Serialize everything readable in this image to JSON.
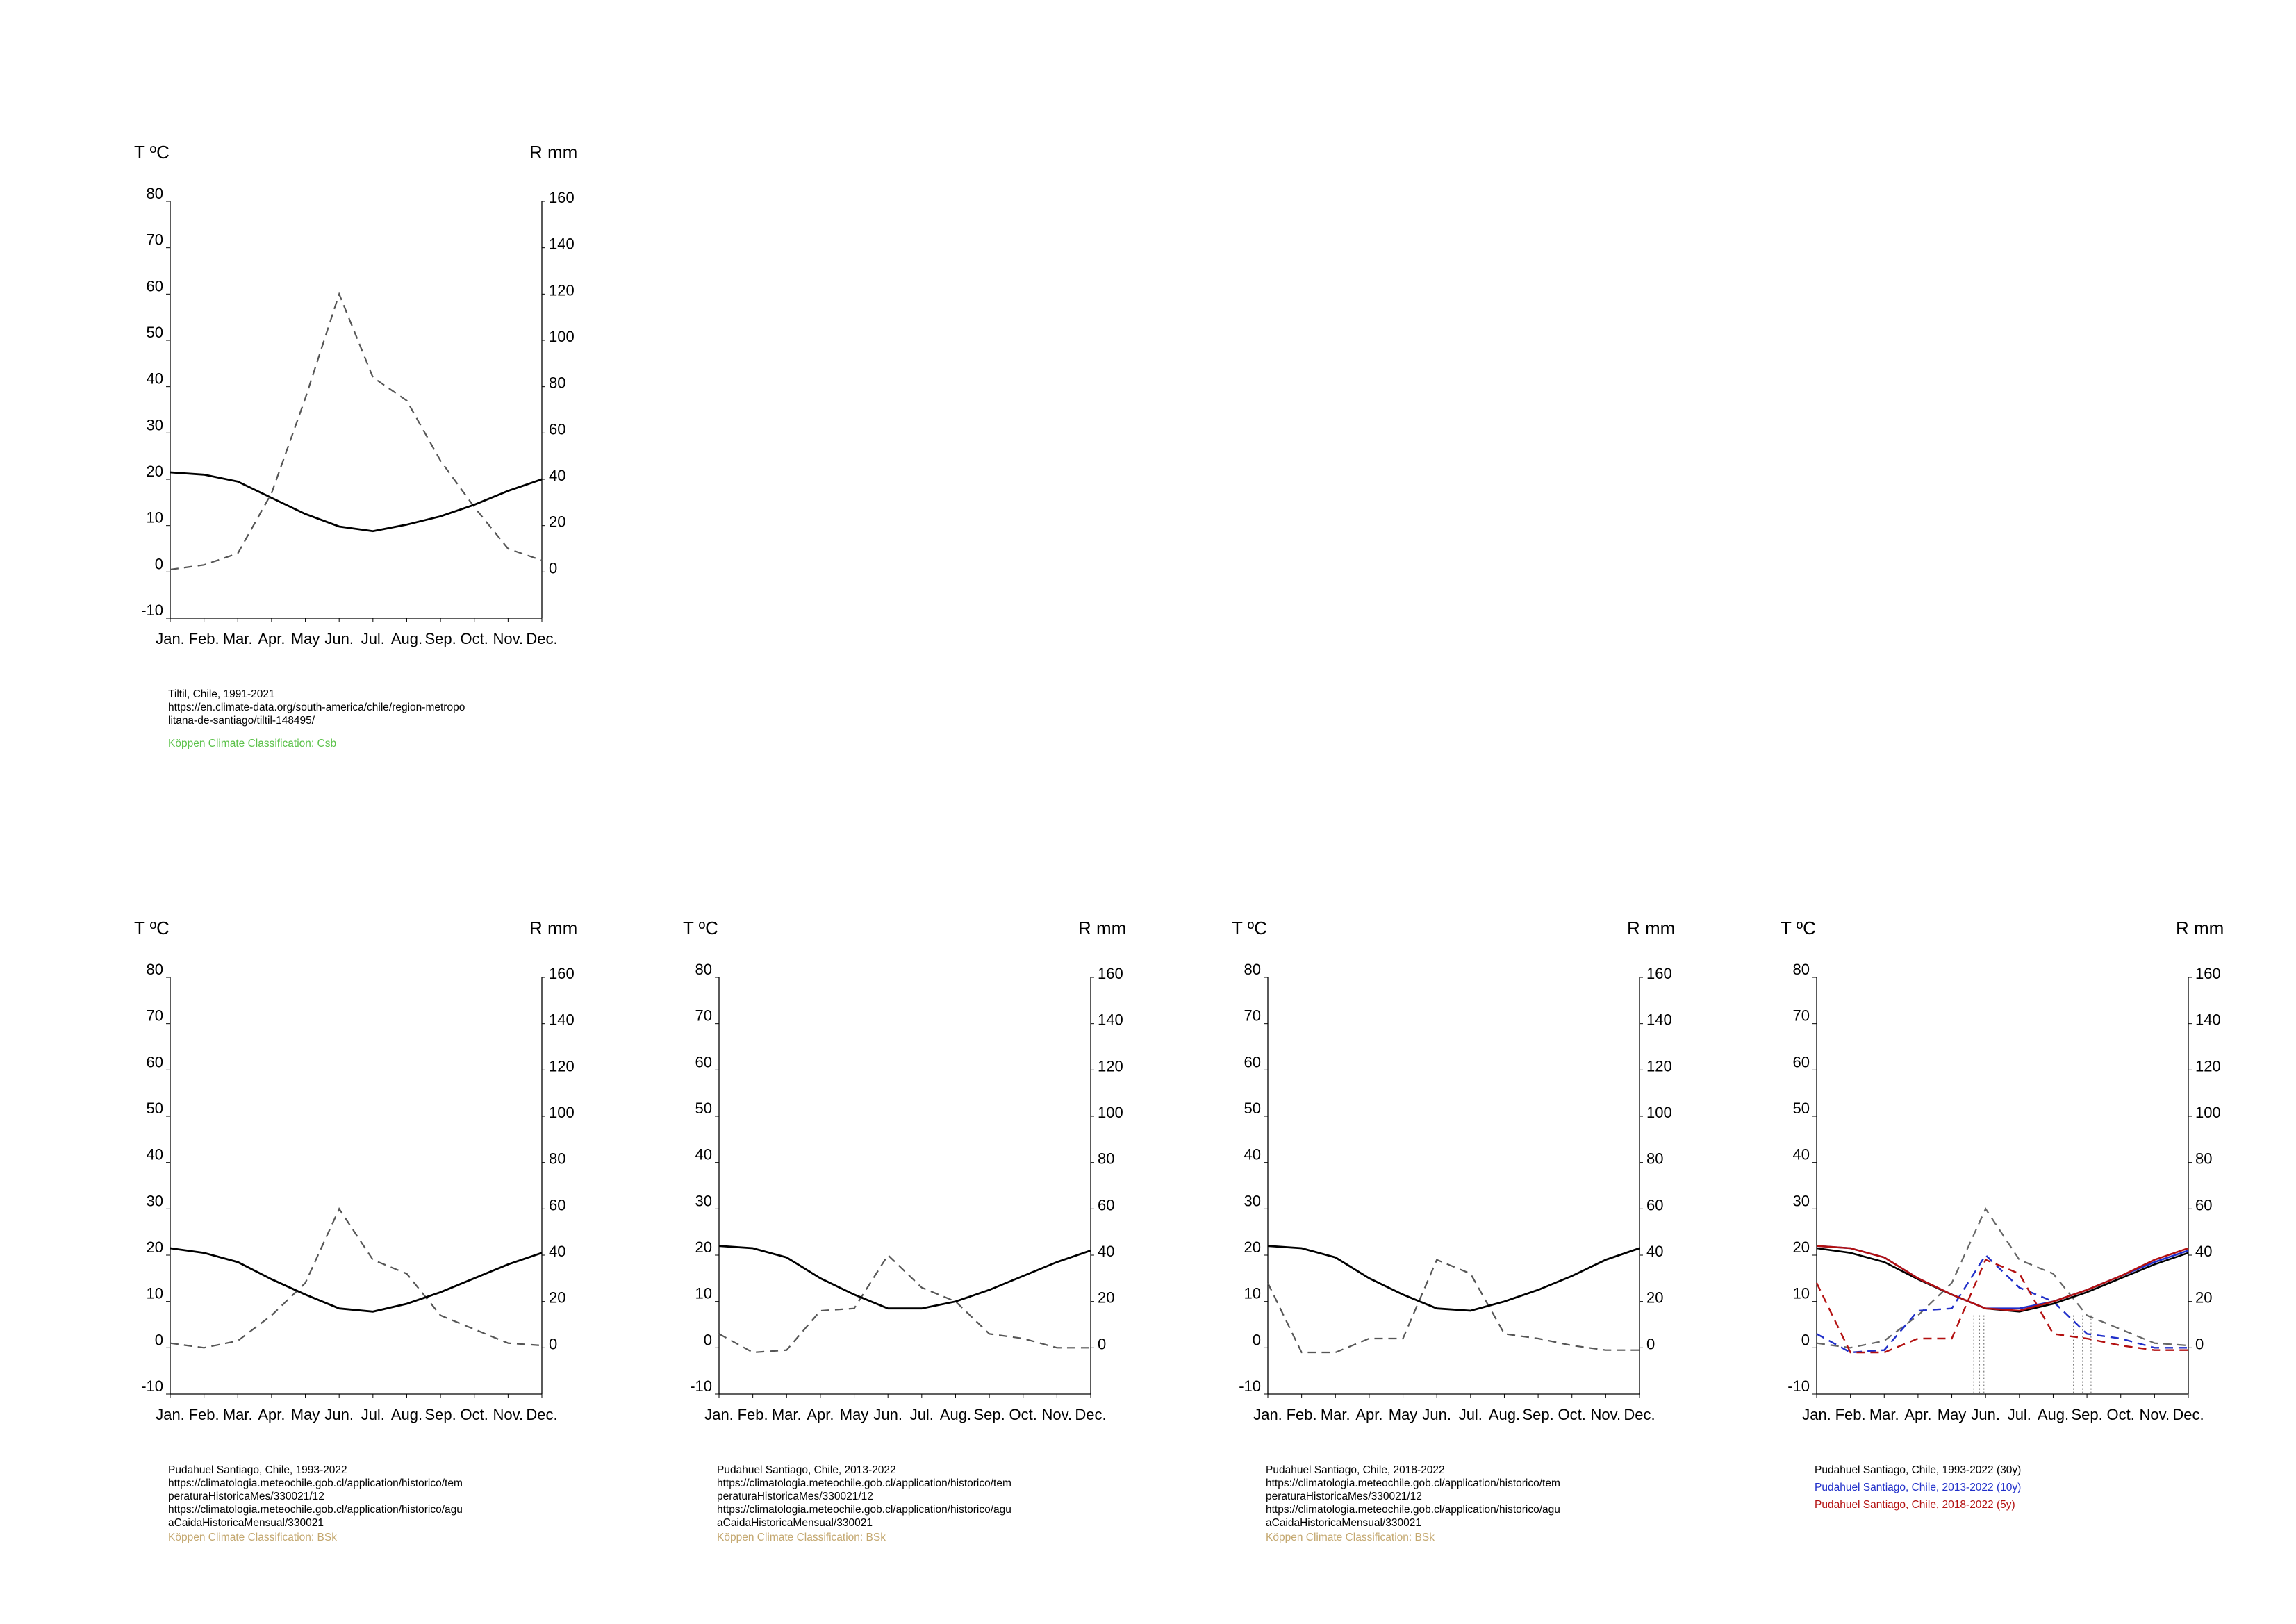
{
  "colors": {
    "temp_line": "#000000",
    "rain_line": "#555555",
    "blue": "#1f2ec9",
    "red": "#b31010",
    "koppen_csb": "#5cc24a",
    "koppen_bsk": "#c4a870"
  },
  "chart_data": [
    {
      "type": "line",
      "x": [
        "Jan.",
        "Feb.",
        "Mar.",
        "Apr.",
        "May",
        "Jun.",
        "Jul.",
        "Aug.",
        "Sep.",
        "Oct.",
        "Nov.",
        "Dec."
      ],
      "y_left_label": "T ºC",
      "y_right_label": "R mm",
      "y_left_ticks": [
        "80",
        "70",
        "60",
        "50",
        "40",
        "30",
        "20",
        "10",
        "0",
        "-10"
      ],
      "y_right_ticks": [
        "160",
        "140",
        "120",
        "100",
        "80",
        "60",
        "40",
        "20",
        "0"
      ],
      "y_left_range": [
        -10,
        80
      ],
      "y_right_range": [
        -20,
        160
      ],
      "temperature": [
        21.5,
        21,
        19.5,
        16,
        12.5,
        9.8,
        8.8,
        10.2,
        12,
        14.5,
        17.5,
        20
      ],
      "precipitation": [
        1,
        3,
        8,
        34,
        75,
        120,
        84,
        74,
        48,
        28,
        10,
        5
      ],
      "caption": [
        "Tiltil, Chile, 1991-2021",
        "https://en.climate-data.org/south-america/chile/region-metropo",
        "litana-de-santiago/tiltil-148495/"
      ],
      "koppen": "Köppen Climate Classification: Csb",
      "koppen_color": "#5cc24a"
    },
    {
      "type": "line",
      "x": [
        "Jan.",
        "Feb.",
        "Mar.",
        "Apr.",
        "May",
        "Jun.",
        "Jul.",
        "Aug.",
        "Sep.",
        "Oct.",
        "Nov.",
        "Dec."
      ],
      "y_left_label": "T ºC",
      "y_right_label": "R mm",
      "y_left_ticks": [
        "80",
        "70",
        "60",
        "50",
        "40",
        "30",
        "20",
        "10",
        "0",
        "-10"
      ],
      "y_right_ticks": [
        "160",
        "140",
        "120",
        "100",
        "80",
        "60",
        "40",
        "20",
        "0"
      ],
      "y_left_range": [
        -10,
        80
      ],
      "y_right_range": [
        -20,
        160
      ],
      "temperature": [
        21.5,
        20.5,
        18.5,
        14.8,
        11.5,
        8.5,
        7.8,
        9.5,
        12,
        15,
        18,
        20.5
      ],
      "precipitation": [
        2,
        0,
        3,
        14,
        28,
        60,
        38,
        32,
        14,
        8,
        2,
        1
      ],
      "caption": [
        "Pudahuel Santiago, Chile, 1993-2022",
        "https://climatologia.meteochile.gob.cl/application/historico/tem",
        "peraturaHistoricaMes/330021/12",
        "https://climatologia.meteochile.gob.cl/application/historico/agu",
        "aCaidaHistoricaMensual/330021"
      ],
      "koppen": "Köppen Climate Classification: BSk",
      "koppen_color": "#c4a870"
    },
    {
      "type": "line",
      "x": [
        "Jan.",
        "Feb.",
        "Mar.",
        "Apr.",
        "May",
        "Jun.",
        "Jul.",
        "Aug.",
        "Sep.",
        "Oct.",
        "Nov.",
        "Dec."
      ],
      "y_left_label": "T ºC",
      "y_right_label": "R mm",
      "y_left_ticks": [
        "80",
        "70",
        "60",
        "50",
        "40",
        "30",
        "20",
        "10",
        "0",
        "-10"
      ],
      "y_right_ticks": [
        "160",
        "140",
        "120",
        "100",
        "80",
        "60",
        "40",
        "20",
        "0"
      ],
      "y_left_range": [
        -10,
        80
      ],
      "y_right_range": [
        -20,
        160
      ],
      "temperature": [
        22,
        21.5,
        19.5,
        15,
        11.5,
        8.5,
        8.5,
        10,
        12.5,
        15.5,
        18.5,
        21
      ],
      "precipitation": [
        6,
        -2,
        -1,
        16,
        17,
        40,
        26,
        20,
        6,
        4,
        0,
        0
      ],
      "caption": [
        "Pudahuel Santiago, Chile, 2013-2022",
        "https://climatologia.meteochile.gob.cl/application/historico/tem",
        "peraturaHistoricaMes/330021/12",
        "https://climatologia.meteochile.gob.cl/application/historico/agu",
        "aCaidaHistoricaMensual/330021"
      ],
      "koppen": "Köppen Climate Classification: BSk",
      "koppen_color": "#c4a870"
    },
    {
      "type": "line",
      "x": [
        "Jan.",
        "Feb.",
        "Mar.",
        "Apr.",
        "May",
        "Jun.",
        "Jul.",
        "Aug.",
        "Sep.",
        "Oct.",
        "Nov.",
        "Dec."
      ],
      "y_left_label": "T ºC",
      "y_right_label": "R mm",
      "y_left_ticks": [
        "80",
        "70",
        "60",
        "50",
        "40",
        "30",
        "20",
        "10",
        "0",
        "-10"
      ],
      "y_right_ticks": [
        "160",
        "140",
        "120",
        "100",
        "80",
        "60",
        "40",
        "20",
        "0"
      ],
      "y_left_range": [
        -10,
        80
      ],
      "y_right_range": [
        -20,
        160
      ],
      "temperature": [
        22,
        21.5,
        19.5,
        15,
        11.5,
        8.5,
        8,
        10,
        12.5,
        15.5,
        19,
        21.5
      ],
      "precipitation": [
        28,
        -2,
        -2,
        4,
        4,
        38,
        32,
        6,
        4,
        1,
        -1,
        -1
      ],
      "caption": [
        "Pudahuel Santiago, Chile, 2018-2022",
        "https://climatologia.meteochile.gob.cl/application/historico/tem",
        "peraturaHistoricaMes/330021/12",
        "https://climatologia.meteochile.gob.cl/application/historico/agu",
        "aCaidaHistoricaMensual/330021"
      ],
      "koppen": "Köppen Climate Classification: BSk",
      "koppen_color": "#c4a870"
    },
    {
      "type": "line",
      "x": [
        "Jan.",
        "Feb.",
        "Mar.",
        "Apr.",
        "May",
        "Jun.",
        "Jul.",
        "Aug.",
        "Sep.",
        "Oct.",
        "Nov.",
        "Dec."
      ],
      "y_left_label": "T ºC",
      "y_right_label": "R mm",
      "y_left_ticks": [
        "80",
        "70",
        "60",
        "50",
        "40",
        "30",
        "20",
        "10",
        "0",
        "-10"
      ],
      "y_right_ticks": [
        "160",
        "140",
        "120",
        "100",
        "80",
        "60",
        "40",
        "20",
        "0"
      ],
      "y_left_range": [
        -10,
        80
      ],
      "y_right_range": [
        -20,
        160
      ],
      "series": [
        {
          "name": "Pudahuel Santiago, Chile, 1993-2022 (30y)",
          "color": "#000000",
          "temperature": [
            21.5,
            20.5,
            18.5,
            14.8,
            11.5,
            8.5,
            7.8,
            9.5,
            12,
            15,
            18,
            20.5
          ],
          "precipitation": [
            2,
            0,
            3,
            14,
            28,
            60,
            38,
            32,
            14,
            8,
            2,
            1
          ]
        },
        {
          "name": "Pudahuel Santiago, Chile, 2013-2022 (10y)",
          "color": "#1f2ec9",
          "temperature": [
            22,
            21.5,
            19.5,
            15,
            11.5,
            8.5,
            8.5,
            10,
            12.5,
            15.5,
            18.5,
            21
          ],
          "precipitation": [
            6,
            -2,
            -1,
            16,
            17,
            40,
            26,
            20,
            6,
            4,
            0,
            0
          ]
        },
        {
          "name": "Pudahuel Santiago, Chile, 2018-2022 (5y)",
          "color": "#b31010",
          "temperature": [
            22,
            21.5,
            19.5,
            15,
            11.5,
            8.5,
            8,
            10,
            12.5,
            15.5,
            19,
            21.5
          ],
          "precipitation": [
            28,
            -2,
            -2,
            4,
            4,
            38,
            32,
            6,
            4,
            1,
            -1,
            -1
          ]
        }
      ],
      "caption": []
    }
  ]
}
